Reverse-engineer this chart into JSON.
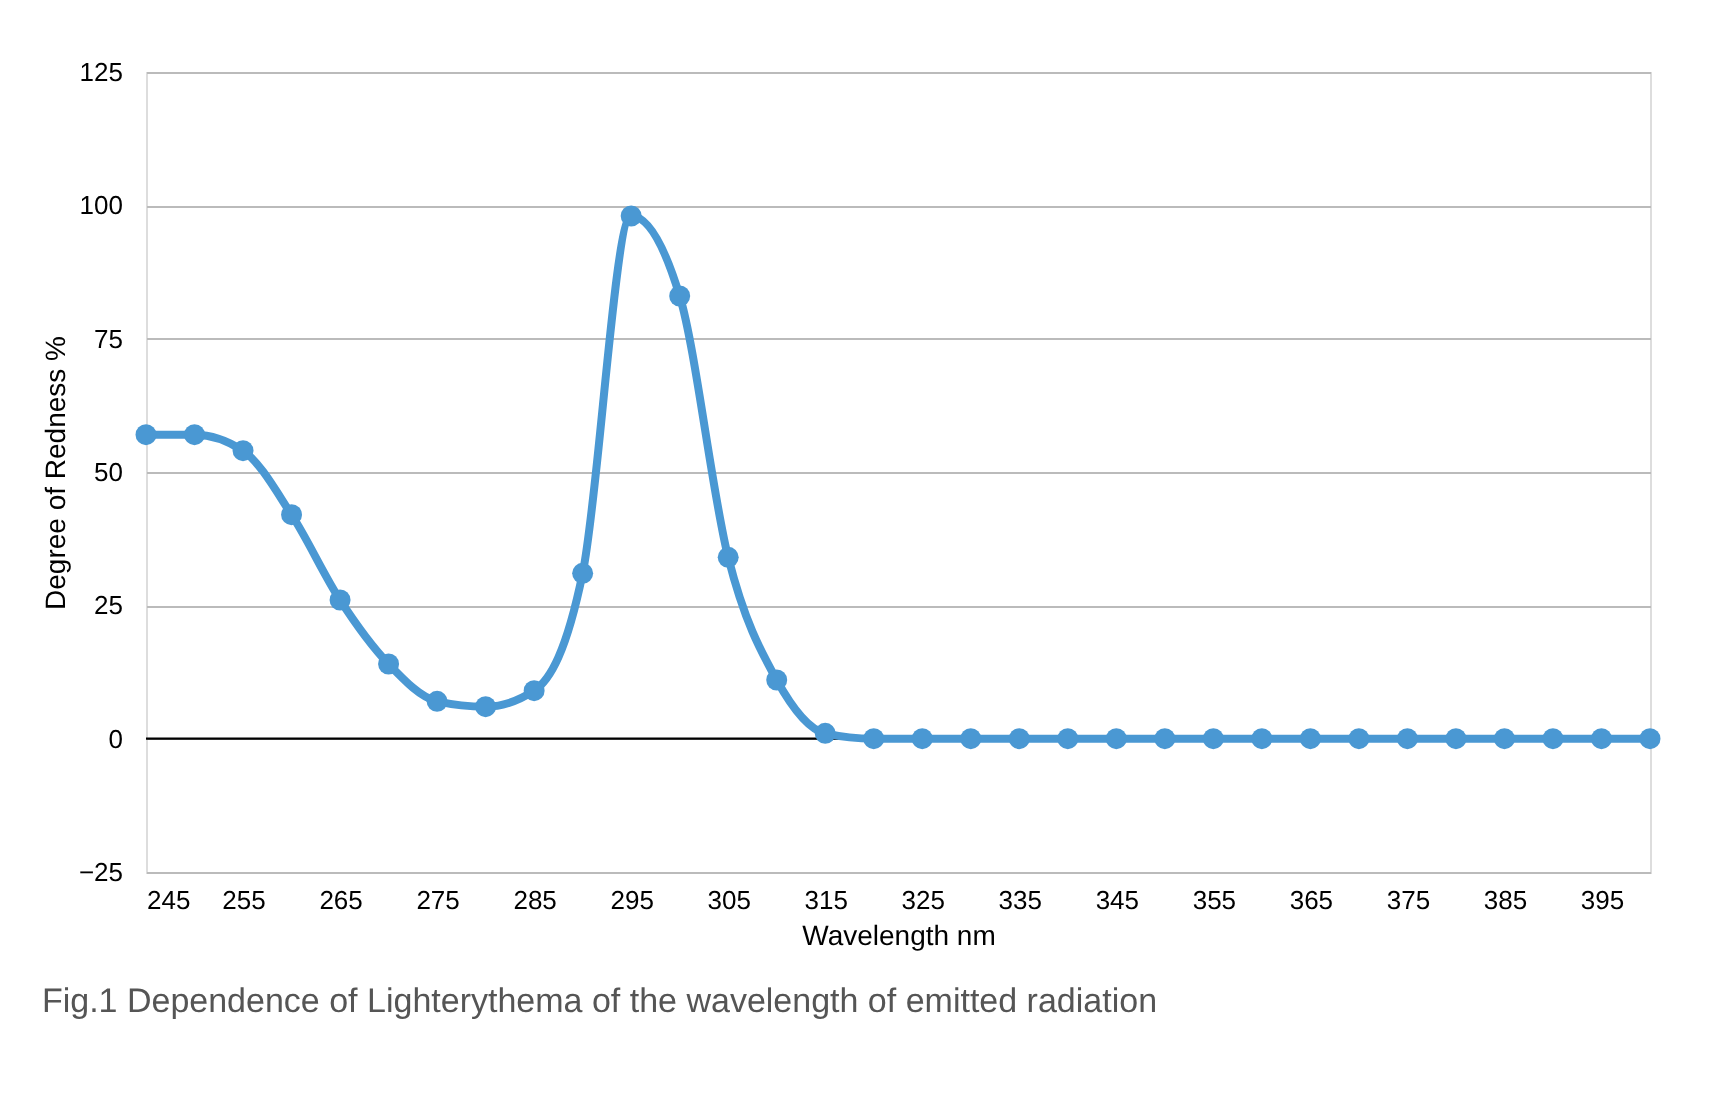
{
  "chart_data": {
    "type": "line",
    "xlabel": "Wavelength nm",
    "ylabel": "Degree of Redness %",
    "x": [
      245,
      250,
      255,
      260,
      265,
      270,
      275,
      280,
      285,
      290,
      295,
      300,
      305,
      310,
      315,
      320,
      325,
      330,
      335,
      340,
      345,
      350,
      355,
      360,
      365,
      370,
      375,
      380,
      385,
      390,
      395,
      400
    ],
    "series": [
      {
        "color": "#4a98d3",
        "values": [
          57,
          57,
          54,
          42,
          26,
          14,
          7,
          6,
          9,
          31,
          98,
          83,
          34,
          11,
          1,
          0,
          0,
          0,
          0,
          0,
          0,
          0,
          0,
          0,
          0,
          0,
          0,
          0,
          0,
          0,
          0,
          0
        ]
      }
    ],
    "xlim": [
      245,
      400
    ],
    "xticks": [
      245,
      255,
      265,
      275,
      285,
      295,
      305,
      315,
      325,
      335,
      345,
      355,
      365,
      375,
      385,
      395
    ],
    "ylim": [
      -25,
      125
    ],
    "yticks": [
      -25,
      0,
      25,
      50,
      75,
      100,
      125
    ],
    "grid": "y",
    "marker": "circle",
    "line_style": "solid",
    "ref_lines": [
      {
        "axis": "y",
        "value": 0,
        "color": "#000000"
      }
    ],
    "annotations": [
      "Fig.1  Dependence of Lighterythema of the wavelength of emitted radiation"
    ]
  }
}
